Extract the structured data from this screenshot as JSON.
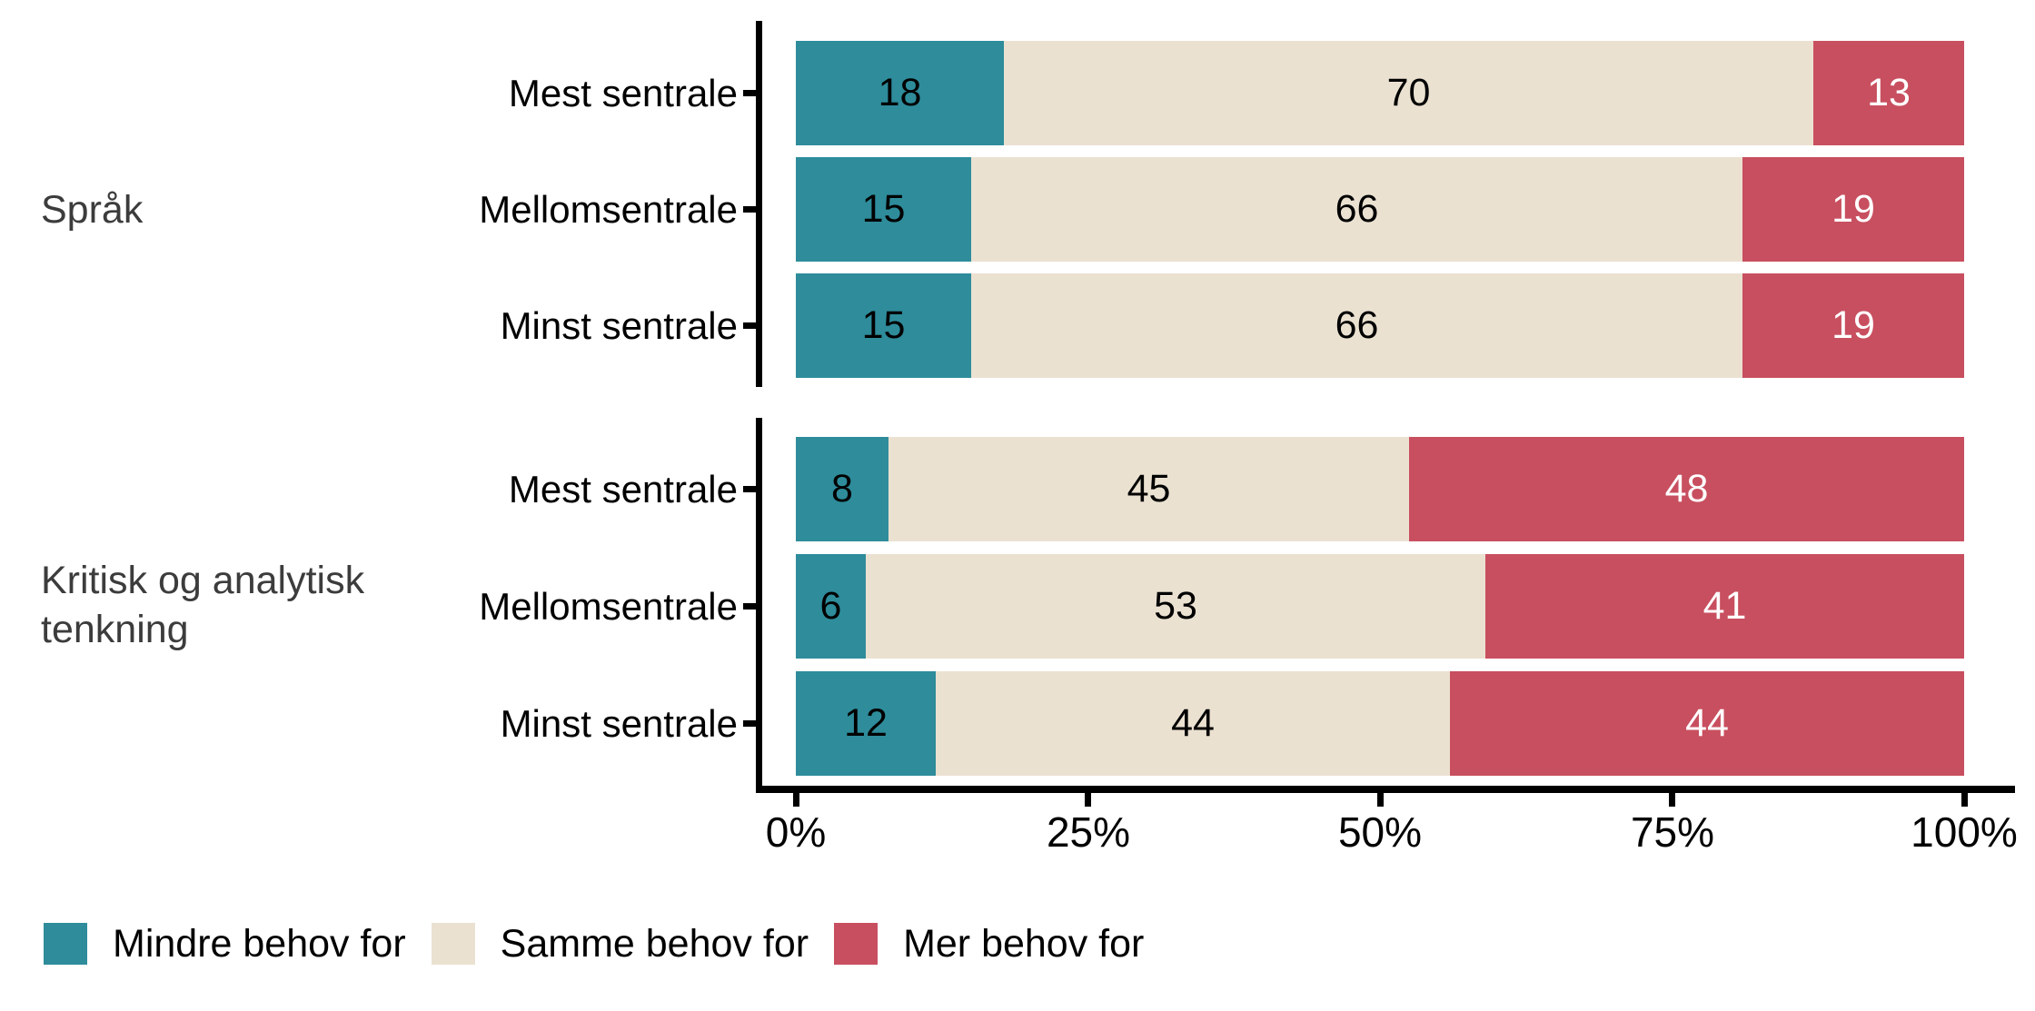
{
  "chart_data": {
    "type": "bar",
    "orientation": "horizontal",
    "stacked": true,
    "normalized_to_100_percent": true,
    "title": "",
    "xlabel": "",
    "ylabel": "",
    "xlim": [
      0,
      100
    ],
    "x_ticks": [
      "0%",
      "25%",
      "50%",
      "75%",
      "100%"
    ],
    "x_tick_values": [
      0,
      25,
      50,
      75,
      100
    ],
    "grid": false,
    "legend_position": "bottom-left",
    "series": [
      {
        "name": "Mindre behov for",
        "color": "#2e8c9b",
        "label_color": "#000000"
      },
      {
        "name": "Samme behov for",
        "color": "#ebe1d1",
        "label_color": "#000000"
      },
      {
        "name": "Mer behov for",
        "color": "#c84f5f",
        "label_color": "#ffffff"
      }
    ],
    "facets": [
      {
        "label": "Språk",
        "label_lines": [
          "Språk"
        ],
        "categories": [
          "Mest sentrale",
          "Mellomsentrale",
          "Minst sentrale"
        ],
        "values": [
          [
            18,
            70,
            13
          ],
          [
            15,
            66,
            19
          ],
          [
            15,
            66,
            19
          ]
        ]
      },
      {
        "label": "Kritisk og analytisk tenkning",
        "label_lines": [
          "Kritisk og analytisk",
          "tenkning"
        ],
        "categories": [
          "Mest sentrale",
          "Mellomsentrale",
          "Minst sentrale"
        ],
        "values": [
          [
            8,
            45,
            48
          ],
          [
            6,
            53,
            41
          ],
          [
            12,
            44,
            44
          ]
        ]
      }
    ]
  },
  "colors": {
    "background": "#ffffff",
    "axis": "#000000",
    "facet_label_text": "#3c3c3c",
    "category_label_text": "#000000",
    "tick_label_text": "#000000"
  }
}
